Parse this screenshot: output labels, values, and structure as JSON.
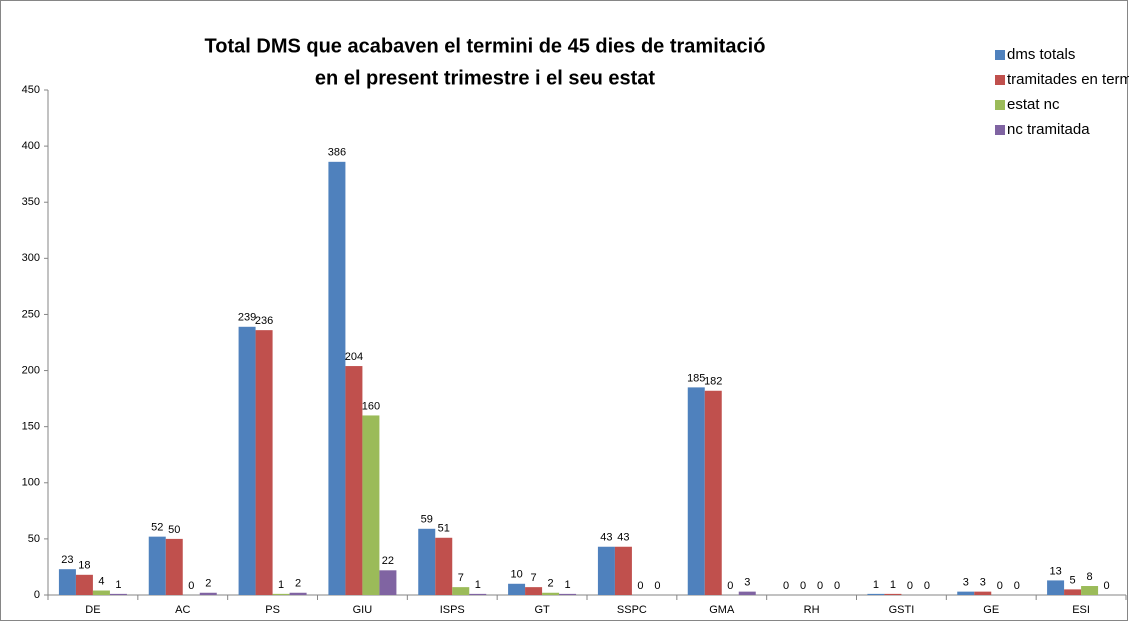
{
  "chart_data": {
    "type": "bar",
    "title": [
      "Total DMS que acabaven el termini de 45 dies de tramitació",
      "en  el  present  trimestre i el seu estat"
    ],
    "categories": [
      "DE",
      "AC",
      "PS",
      "GIU",
      "ISPS",
      "GT",
      "SSPC",
      "GMA",
      "RH",
      "GSTI",
      "GE",
      "ESI"
    ],
    "series": [
      {
        "name": "dms totals",
        "color": "#4f81bd",
        "values": [
          23,
          52,
          239,
          386,
          59,
          10,
          43,
          185,
          0,
          1,
          3,
          13
        ]
      },
      {
        "name": "tramitades en termini",
        "color": "#c0504d",
        "values": [
          18,
          50,
          236,
          204,
          51,
          7,
          43,
          182,
          0,
          1,
          3,
          5
        ]
      },
      {
        "name": "estat nc",
        "color": "#9bbb59",
        "values": [
          4,
          0,
          1,
          160,
          7,
          2,
          0,
          0,
          0,
          0,
          0,
          8
        ]
      },
      {
        "name": "nc tramitada",
        "color": "#8064a2",
        "values": [
          1,
          2,
          2,
          22,
          1,
          1,
          0,
          3,
          0,
          0,
          0,
          0
        ]
      }
    ],
    "ylim": [
      0,
      450
    ],
    "yticks": [
      0,
      50,
      100,
      150,
      200,
      250,
      300,
      350,
      400,
      450
    ],
    "grid": false,
    "legend": "top-right",
    "data_labels": true
  }
}
